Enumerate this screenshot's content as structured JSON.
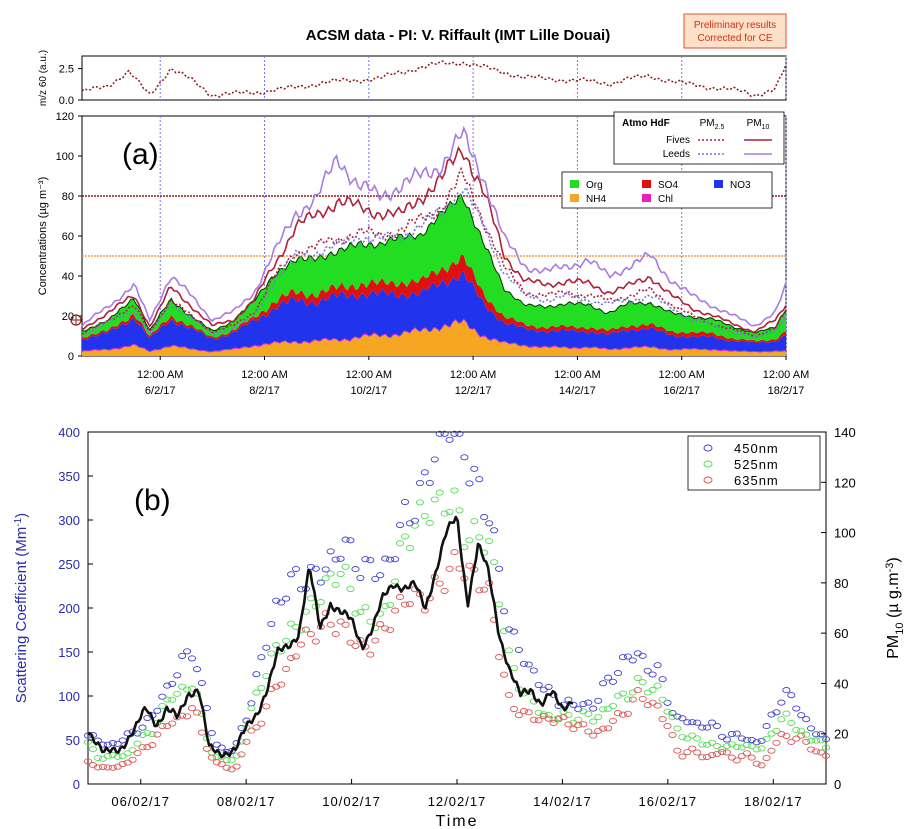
{
  "chart_data": [
    {
      "panel": "(a)",
      "type": "area",
      "title": "ACSM data - PI: V. Riffault (IMT Lille Douai)",
      "note": [
        "Preliminary results",
        "Corrected for CE"
      ],
      "x": {
        "ticks": [
          "12:00 AM 6/2/17",
          "12:00 AM 8/2/17",
          "12:00 AM 10/2/17",
          "12:00 AM 12/2/17",
          "12:00 AM 14/2/17",
          "12:00 AM 16/2/17",
          "12:00 AM 18/2/17"
        ],
        "tick_lines": [
          "12:00 AM",
          "12:00 AM",
          "12:00 AM",
          "12:00 AM",
          "12:00 AM",
          "12:00 AM",
          "12:00 AM"
        ],
        "tick_dates": [
          "6/2/17",
          "8/2/17",
          "10/2/17",
          "12/2/17",
          "14/2/17",
          "16/2/17",
          "18/2/17"
        ],
        "range_days": [
          4.5,
          18.0
        ]
      },
      "top_strip": {
        "ylabel": "m/z 60 (a.u.)",
        "yticks": [
          "0.0",
          "2.5"
        ],
        "ylim": [
          0,
          3.5
        ],
        "color": "#8b1a1a",
        "days": [
          4.5,
          5.0,
          5.4,
          5.8,
          6.2,
          6.6,
          7.0,
          7.4,
          7.8,
          8.2,
          8.6,
          9.0,
          9.4,
          9.8,
          10.2,
          10.6,
          11.0,
          11.4,
          11.8,
          12.2,
          12.6,
          13.0,
          13.4,
          13.8,
          14.2,
          14.6,
          15.0,
          15.4,
          15.8,
          16.2,
          16.6,
          17.0,
          17.4,
          17.8,
          18.0
        ],
        "values": [
          0.6,
          1.2,
          2.2,
          0.4,
          2.5,
          1.6,
          0.4,
          0.5,
          0.6,
          0.8,
          1.0,
          1.3,
          1.5,
          1.6,
          1.7,
          2.2,
          2.6,
          2.9,
          3.0,
          2.6,
          2.2,
          1.8,
          1.7,
          1.6,
          1.5,
          1.3,
          1.7,
          1.9,
          1.5,
          1.2,
          1.0,
          0.8,
          0.4,
          0.9,
          2.7
        ]
      },
      "main": {
        "ylabel": "Concentrations (µg m⁻³)",
        "yticks": [
          "0",
          "20",
          "40",
          "60",
          "80",
          "100",
          "120"
        ],
        "ylim": [
          0,
          120
        ],
        "threshold_lines": [
          {
            "value": 80,
            "color": "#8b1a1a"
          },
          {
            "value": 50,
            "color": "#f0a040"
          }
        ],
        "days": [
          4.5,
          5.0,
          5.5,
          5.8,
          6.2,
          6.6,
          7.0,
          7.4,
          7.8,
          8.2,
          8.6,
          9.0,
          9.4,
          9.8,
          10.2,
          10.6,
          11.0,
          11.4,
          11.8,
          12.2,
          12.6,
          13.0,
          13.4,
          13.8,
          14.2,
          14.6,
          15.0,
          15.4,
          15.8,
          16.2,
          16.6,
          17.0,
          17.4,
          17.8,
          18.0
        ],
        "stack_legend_title": "",
        "stack": [
          {
            "name": "NH4",
            "color": "#f5a623",
            "values": [
              2,
              3,
              5,
              2,
              5,
              3,
              2,
              3,
              5,
              6,
              7,
              7,
              8,
              9,
              10,
              11,
              12,
              15,
              16,
              10,
              6,
              5,
              4,
              4,
              4,
              3,
              4,
              4,
              3,
              3,
              3,
              2,
              2,
              2,
              2
            ]
          },
          {
            "name": "Chl",
            "color": "#e61ec8",
            "values": [
              0.5,
              0.5,
              0.5,
              0.5,
              0.5,
              0.5,
              0.5,
              0.5,
              0.5,
              0.5,
              0.5,
              0.5,
              0.5,
              0.5,
              0.5,
              0.5,
              0.5,
              0.5,
              0.5,
              0.5,
              0.5,
              0.5,
              0.5,
              0.5,
              0.5,
              0.5,
              0.5,
              0.5,
              0.5,
              0.5,
              0.5,
              0.5,
              0.5,
              0.5,
              0.5
            ]
          },
          {
            "name": "NO3",
            "color": "#2233ee",
            "values": [
              6,
              8,
              14,
              6,
              13,
              10,
              6,
              8,
              12,
              18,
              20,
              20,
              21,
              22,
              20,
              20,
              18,
              22,
              24,
              16,
              10,
              8,
              8,
              8,
              8,
              7,
              9,
              9,
              7,
              6,
              6,
              5,
              4,
              5,
              8
            ]
          },
          {
            "name": "SO4",
            "color": "#e01010",
            "values": [
              1,
              1,
              2,
              1,
              2,
              1,
              1,
              1,
              2,
              3,
              4,
              4,
              4,
              5,
              5,
              6,
              6,
              7,
              8,
              5,
              3,
              2,
              2,
              2,
              2,
              2,
              2,
              2,
              2,
              2,
              2,
              1,
              1,
              1,
              2
            ]
          },
          {
            "name": "Org",
            "color": "#22dd22",
            "values": [
              3,
              5,
              8,
              3,
              8,
              5,
              3,
              5,
              8,
              14,
              16,
              18,
              18,
              20,
              20,
              22,
              24,
              27,
              32,
              25,
              14,
              10,
              10,
              12,
              11,
              9,
              11,
              11,
              9,
              8,
              7,
              6,
              4,
              6,
              12
            ]
          }
        ],
        "legend_order": [
          "Org",
          "SO4",
          "NO3",
          "NH4",
          "Chl"
        ],
        "lines": {
          "legend_title": "Atmo HdF",
          "col_headers": [
            "PM2.5",
            "PM10"
          ],
          "col_header_base": [
            "PM",
            "PM"
          ],
          "col_header_sub": [
            "2.5",
            "10"
          ],
          "row_labels": [
            "Fives",
            "Leeds"
          ],
          "series": [
            {
              "name": "Fives PM2.5",
              "color": "#b0203a",
              "dash": "2,2",
              "values": [
                11,
                18,
                25,
                12,
                28,
                20,
                12,
                15,
                22,
                40,
                52,
                55,
                58,
                62,
                60,
                63,
                68,
                75,
                90,
                68,
                44,
                32,
                30,
                32,
                30,
                28,
                30,
                33,
                26,
                20,
                16,
                13,
                10,
                14,
                22
              ]
            },
            {
              "name": "Fives PM10",
              "color": "#b0203a",
              "dash": "",
              "values": [
                13,
                22,
                30,
                15,
                34,
                25,
                15,
                18,
                28,
                46,
                65,
                70,
                78,
                74,
                72,
                70,
                80,
                88,
                105,
                82,
                50,
                38,
                35,
                38,
                36,
                32,
                35,
                40,
                30,
                24,
                20,
                16,
                12,
                18,
                26
              ]
            },
            {
              "name": "Leeds PM2.5",
              "color": "#7777dd",
              "dash": "2,2",
              "values": [
                10,
                17,
                23,
                11,
                26,
                19,
                11,
                14,
                20,
                38,
                50,
                52,
                55,
                60,
                58,
                60,
                65,
                72,
                85,
                65,
                42,
                30,
                28,
                30,
                28,
                26,
                28,
                30,
                24,
                18,
                15,
                12,
                9,
                13,
                20
              ]
            },
            {
              "name": "Leeds PM10",
              "color": "#a77be0",
              "dash": "",
              "values": [
                15,
                25,
                35,
                18,
                40,
                30,
                18,
                22,
                32,
                52,
                72,
                78,
                100,
                85,
                80,
                85,
                90,
                96,
                110,
                90,
                58,
                45,
                42,
                45,
                48,
                40,
                45,
                50,
                38,
                30,
                25,
                20,
                15,
                22,
                35
              ]
            }
          ]
        }
      }
    },
    {
      "panel": "(b)",
      "type": "scatter",
      "xlabel": "Time",
      "ylabel": "Scattering Coefficient (Mm⁻¹)",
      "ylabel_base": "Scattering Coefficient (Mm",
      "ylabel_sup": "-1",
      "ylabel_end": ")",
      "y2label": "PM10 (µg.m⁻³)",
      "y2label_base": "PM",
      "y2label_sub": "10",
      "y2label_mid": " (µ g.m",
      "y2label_sup": "-3",
      "y2label_end": ")",
      "xticks": [
        "06/02/17",
        "08/02/17",
        "10/02/17",
        "12/02/17",
        "14/02/17",
        "16/02/17",
        "18/02/17"
      ],
      "xlim_days": [
        5.0,
        19.0
      ],
      "yticks": [
        "0",
        "50",
        "100",
        "150",
        "200",
        "250",
        "300",
        "350",
        "400"
      ],
      "ylim": [
        0,
        400
      ],
      "y2ticks": [
        "0",
        "20",
        "40",
        "60",
        "80",
        "100",
        "120",
        "140"
      ],
      "y2lim": [
        0,
        140
      ],
      "legend_placement": "top-right",
      "series": [
        {
          "name": "450nm",
          "color": "#4040cc",
          "days": [
            5.0,
            5.4,
            5.8,
            6.2,
            6.6,
            7.0,
            7.4,
            7.8,
            8.2,
            8.6,
            9.0,
            9.4,
            9.8,
            10.2,
            10.6,
            11.0,
            11.4,
            11.8,
            12.0,
            12.2,
            12.6,
            13.0,
            13.4,
            13.8,
            14.2,
            14.6,
            15.0,
            15.4,
            15.8,
            16.2,
            16.6,
            17.0,
            17.4,
            17.8,
            18.2,
            18.6,
            19.0
          ],
          "values": [
            55,
            40,
            55,
            80,
            120,
            145,
            45,
            40,
            120,
            195,
            235,
            255,
            270,
            230,
            240,
            320,
            340,
            390,
            395,
            370,
            330,
            170,
            120,
            100,
            95,
            90,
            120,
            150,
            135,
            70,
            65,
            60,
            55,
            50,
            100,
            75,
            50
          ]
        },
        {
          "name": "525nm",
          "color": "#55dd55",
          "days": [
            5.0,
            5.4,
            5.8,
            6.2,
            6.6,
            7.0,
            7.4,
            7.8,
            8.2,
            8.6,
            9.0,
            9.4,
            9.8,
            10.2,
            10.6,
            11.0,
            11.4,
            11.8,
            12.0,
            12.2,
            12.6,
            13.0,
            13.4,
            13.8,
            14.2,
            14.6,
            15.0,
            15.4,
            15.8,
            16.2,
            16.6,
            17.0,
            17.4,
            17.8,
            18.2,
            18.6,
            19.0
          ],
          "values": [
            40,
            28,
            40,
            60,
            95,
            115,
            30,
            28,
            95,
            160,
            195,
            210,
            230,
            195,
            200,
            270,
            290,
            330,
            330,
            300,
            270,
            130,
            95,
            80,
            75,
            70,
            95,
            120,
            105,
            55,
            50,
            45,
            42,
            38,
            80,
            60,
            40
          ]
        },
        {
          "name": "635nm",
          "color": "#dd5555",
          "days": [
            5.0,
            5.4,
            5.8,
            6.2,
            6.6,
            7.0,
            7.4,
            7.8,
            8.2,
            8.6,
            9.0,
            9.4,
            9.8,
            10.2,
            10.6,
            11.0,
            11.4,
            11.8,
            12.0,
            12.2,
            12.6,
            13.0,
            13.4,
            13.8,
            14.2,
            14.6,
            15.0,
            15.4,
            15.8,
            16.2,
            16.6,
            17.0,
            17.4,
            17.8,
            18.2,
            18.6,
            19.0
          ],
          "values": [
            25,
            18,
            25,
            45,
            75,
            90,
            20,
            18,
            70,
            120,
            150,
            170,
            190,
            160,
            165,
            200,
            220,
            250,
            255,
            230,
            210,
            95,
            80,
            70,
            65,
            60,
            75,
            95,
            85,
            40,
            35,
            32,
            30,
            25,
            60,
            45,
            30
          ]
        }
      ],
      "pm10_line": {
        "name": "PM10",
        "color": "#111111",
        "axis": "right",
        "days": [
          5.0,
          5.3,
          5.6,
          5.9,
          6.1,
          6.3,
          6.5,
          6.7,
          6.9,
          7.1,
          7.3,
          7.5,
          7.8,
          8.0,
          8.2,
          8.4,
          8.6,
          8.8,
          9.0,
          9.2,
          9.4,
          9.6,
          9.8,
          10.0,
          10.2,
          10.4,
          10.6,
          10.8,
          11.0,
          11.2,
          11.4,
          11.6,
          11.8,
          12.0,
          12.2,
          12.4,
          12.6,
          12.8,
          13.0,
          13.2,
          13.4,
          13.6,
          13.8,
          14.0,
          14.2
        ],
        "values": [
          22,
          12,
          14,
          22,
          30,
          24,
          30,
          26,
          36,
          38,
          14,
          12,
          14,
          22,
          28,
          38,
          52,
          55,
          60,
          86,
          62,
          72,
          68,
          65,
          55,
          62,
          74,
          80,
          78,
          79,
          70,
          85,
          100,
          106,
          72,
          95,
          84,
          60,
          45,
          35,
          38,
          32,
          36,
          30,
          34
        ]
      }
    }
  ]
}
